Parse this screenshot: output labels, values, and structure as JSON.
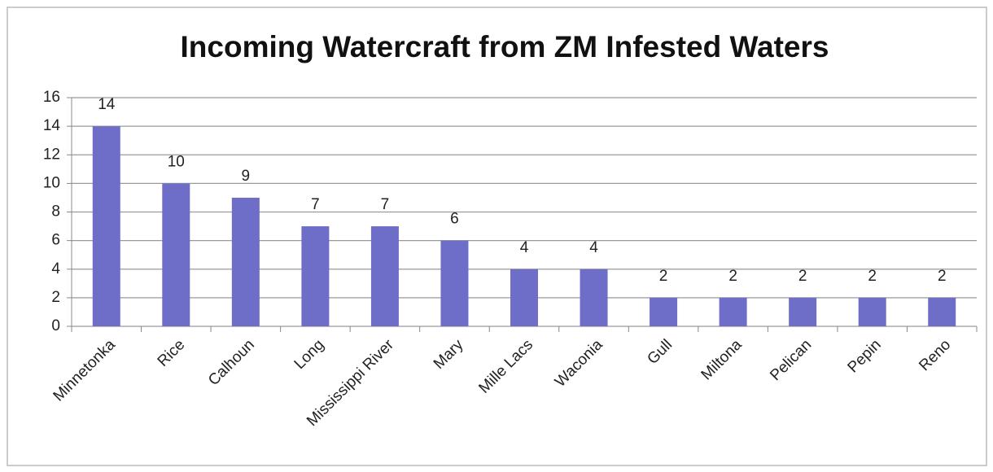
{
  "chart_data": {
    "type": "bar",
    "title": "Incoming Watercraft from ZM Infested Waters",
    "categories": [
      "Minnetonka",
      "Rice",
      "Calhoun",
      "Long",
      "Mississippi River",
      "Mary",
      "Mille Lacs",
      "Waconia",
      "Gull",
      "Miltona",
      "Pelican",
      "Pepin",
      "Reno"
    ],
    "values": [
      14,
      10,
      9,
      7,
      7,
      6,
      4,
      4,
      2,
      2,
      2,
      2,
      2
    ],
    "color": "#6e6ec8",
    "ylim": [
      0,
      16
    ],
    "yticks": [
      0,
      2,
      4,
      6,
      8,
      10,
      12,
      14,
      16
    ],
    "grid": true,
    "data_labels": true
  }
}
